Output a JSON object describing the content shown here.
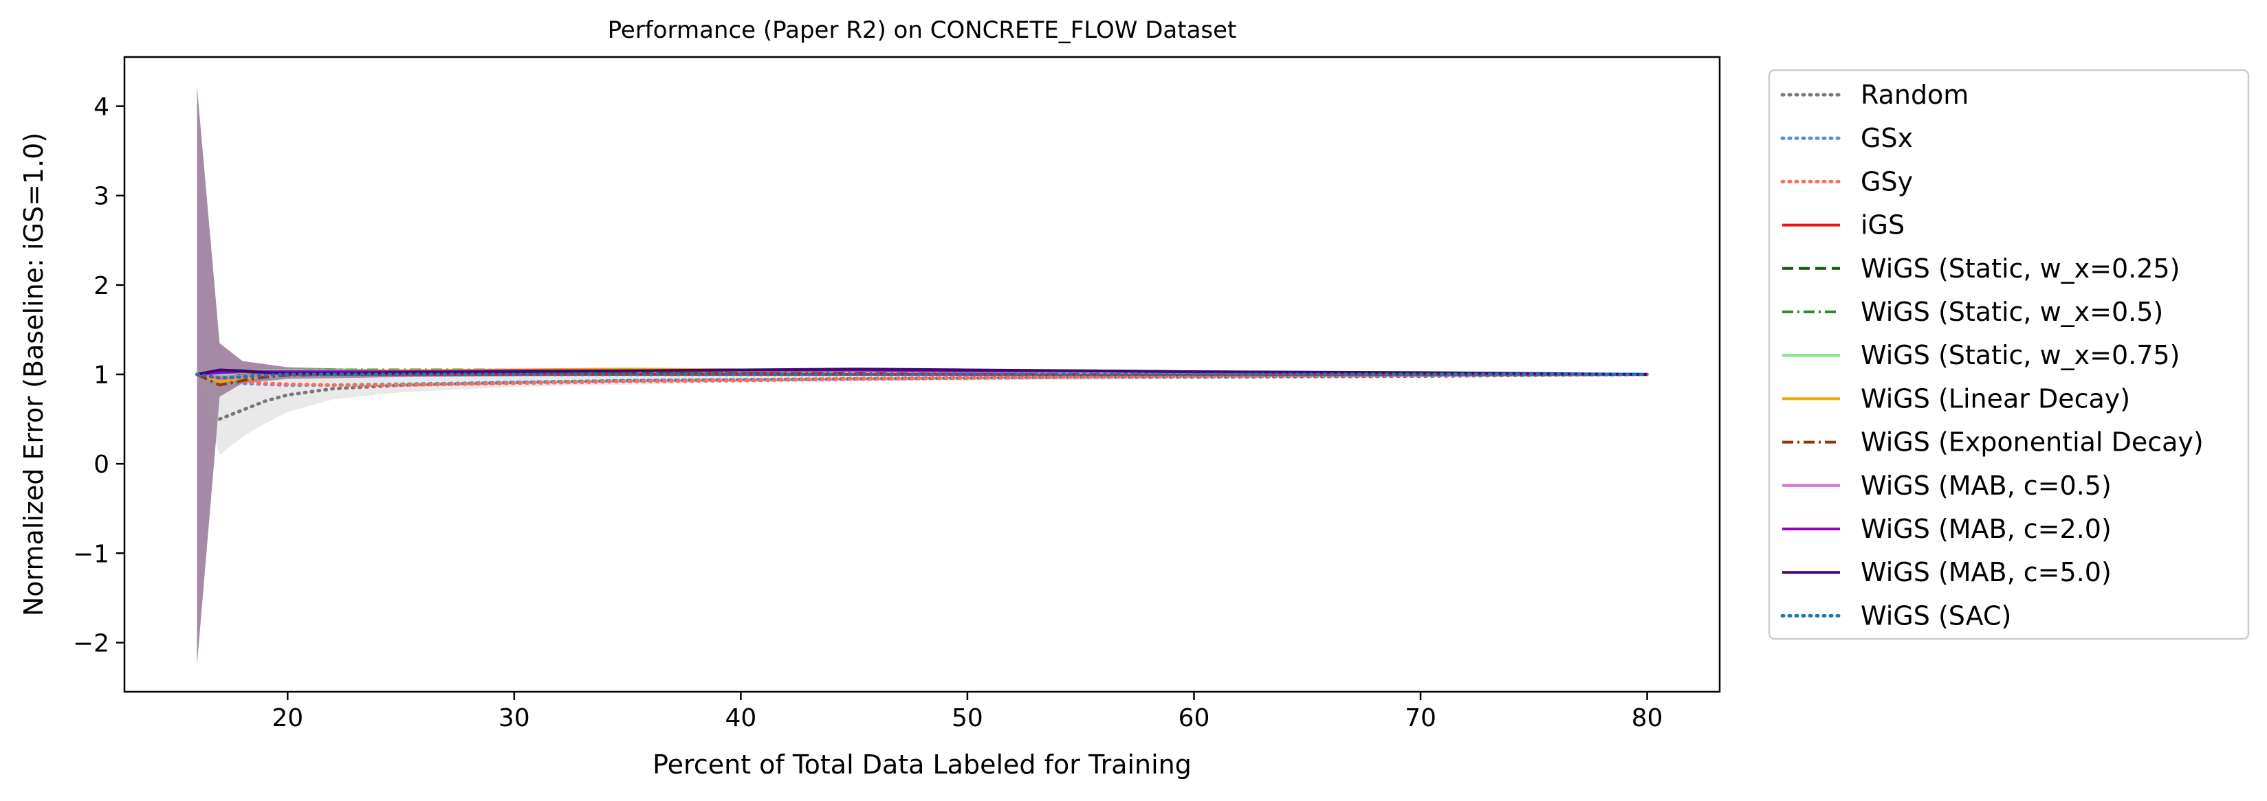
{
  "chart_data": {
    "type": "line",
    "title": "Performance (Paper R2) on CONCRETE_FLOW Dataset",
    "xlabel": "Percent of Total Data Labeled for Training",
    "ylabel": "Normalized Error (Baseline: iGS=1.0)",
    "xlim": [
      12.8,
      83.2
    ],
    "ylim": [
      -2.55,
      4.55
    ],
    "xticks": [
      20,
      30,
      40,
      50,
      60,
      70,
      80
    ],
    "yticks": [
      -2,
      -1,
      0,
      1,
      2,
      3,
      4
    ],
    "ytick_labels": [
      "−2",
      "−1",
      "0",
      "1",
      "2",
      "3",
      "4"
    ],
    "grid": false,
    "legend_position": "outside-right",
    "x": [
      16,
      17,
      18,
      19,
      20,
      22,
      25,
      30,
      35,
      40,
      45,
      50,
      55,
      60,
      70,
      80
    ],
    "bands": [
      {
        "name": "WiGS (MAB, c=5.0)",
        "color": "#6b3a6b",
        "opacity": 0.6,
        "x": [
          16,
          17,
          18,
          20,
          25,
          30,
          40,
          60,
          80
        ],
        "lower": [
          -2.25,
          0.75,
          0.9,
          0.95,
          0.97,
          0.98,
          0.99,
          0.99,
          0.99
        ],
        "upper": [
          4.22,
          1.35,
          1.15,
          1.08,
          1.05,
          1.05,
          1.06,
          1.04,
          1.01
        ]
      },
      {
        "name": "Random",
        "color": "#999999",
        "opacity": 0.22,
        "x": [
          16,
          17,
          18,
          19,
          20,
          22,
          25,
          30,
          40,
          50,
          60,
          80
        ],
        "lower": [
          0.95,
          0.1,
          0.3,
          0.45,
          0.58,
          0.72,
          0.8,
          0.86,
          0.91,
          0.93,
          0.95,
          0.98
        ],
        "upper": [
          1.05,
          1.0,
          1.05,
          1.02,
          1.0,
          0.99,
          0.98,
          0.99,
          0.99,
          0.99,
          0.99,
          1.0
        ]
      }
    ],
    "series": [
      {
        "name": "Random",
        "color": "#777777",
        "dash": "2,8",
        "width": 5,
        "values": [
          null,
          0.5,
          0.6,
          0.7,
          0.77,
          0.84,
          0.88,
          0.91,
          0.93,
          0.94,
          0.95,
          0.96,
          0.97,
          0.97,
          0.98,
          1.0
        ]
      },
      {
        "name": "GSx",
        "color": "#5b8bd8",
        "dash": "2,8",
        "width": 5,
        "values": [
          1.0,
          0.93,
          0.9,
          0.89,
          0.88,
          0.88,
          0.89,
          0.91,
          0.93,
          0.94,
          0.95,
          0.96,
          0.97,
          0.98,
          0.99,
          1.0
        ]
      },
      {
        "name": "GSy",
        "color": "#ff6b5b",
        "dash": "2,8",
        "width": 5,
        "values": [
          1.0,
          0.95,
          0.92,
          0.9,
          0.89,
          0.88,
          0.88,
          0.9,
          0.92,
          0.93,
          0.95,
          0.96,
          0.97,
          0.98,
          0.99,
          1.0
        ]
      },
      {
        "name": "iGS",
        "color": "#ee1111",
        "dash": "",
        "width": 4,
        "values": [
          1.0,
          1.0,
          1.0,
          1.0,
          1.0,
          1.0,
          1.0,
          1.0,
          1.0,
          1.0,
          1.0,
          1.0,
          1.0,
          1.0,
          1.0,
          1.0
        ]
      },
      {
        "name": "WiGS (Static, w_x=0.25)",
        "color": "#0e5e0e",
        "dash": "16,8",
        "width": 4,
        "values": [
          1.0,
          0.97,
          0.99,
          1.01,
          1.02,
          1.02,
          1.02,
          1.03,
          1.03,
          1.03,
          1.03,
          1.03,
          1.02,
          1.02,
          1.01,
          1.0
        ]
      },
      {
        "name": "WiGS (Static, w_x=0.5)",
        "color": "#2a8f2a",
        "dash": "16,6,3,6",
        "width": 4,
        "values": [
          1.0,
          0.98,
          1.01,
          1.03,
          1.04,
          1.05,
          1.05,
          1.05,
          1.05,
          1.04,
          1.04,
          1.03,
          1.03,
          1.02,
          1.01,
          1.0
        ]
      },
      {
        "name": "WiGS (Static, w_x=0.75)",
        "color": "#7ee87e",
        "dash": "",
        "width": 4,
        "values": [
          1.0,
          0.99,
          1.02,
          1.04,
          1.04,
          1.04,
          1.04,
          1.04,
          1.04,
          1.04,
          1.03,
          1.03,
          1.02,
          1.02,
          1.01,
          1.0
        ]
      },
      {
        "name": "WiGS (Linear Decay)",
        "color": "#f5a30a",
        "dash": "",
        "width": 4,
        "values": [
          1.0,
          0.92,
          0.95,
          0.99,
          1.01,
          1.03,
          1.04,
          1.05,
          1.06,
          1.05,
          1.05,
          1.04,
          1.03,
          1.02,
          1.01,
          1.0
        ]
      },
      {
        "name": "WiGS (Exponential Decay)",
        "color": "#8b3a0a",
        "dash": "16,6,3,6",
        "width": 4,
        "values": [
          1.0,
          0.88,
          0.93,
          0.97,
          0.99,
          1.0,
          1.01,
          1.02,
          1.02,
          1.02,
          1.02,
          1.02,
          1.01,
          1.01,
          1.0,
          1.0
        ]
      },
      {
        "name": "WiGS (MAB, c=0.5)",
        "color": "#da70d6",
        "dash": "",
        "width": 4,
        "values": [
          1.0,
          0.97,
          0.98,
          1.0,
          1.01,
          1.02,
          1.03,
          1.03,
          1.04,
          1.04,
          1.04,
          1.03,
          1.03,
          1.02,
          1.01,
          1.0
        ]
      },
      {
        "name": "WiGS (MAB, c=2.0)",
        "color": "#9400d3",
        "dash": "",
        "width": 4,
        "values": [
          1.0,
          1.02,
          1.03,
          1.03,
          1.03,
          1.03,
          1.03,
          1.04,
          1.04,
          1.05,
          1.05,
          1.04,
          1.04,
          1.03,
          1.01,
          1.0
        ]
      },
      {
        "name": "WiGS (MAB, c=5.0)",
        "color": "#3b0a6b",
        "dash": "",
        "width": 4,
        "values": [
          1.0,
          1.05,
          1.04,
          1.02,
          1.01,
          1.01,
          1.02,
          1.03,
          1.04,
          1.05,
          1.06,
          1.05,
          1.04,
          1.03,
          1.02,
          1.0
        ]
      },
      {
        "name": "WiGS (SAC)",
        "color": "#1f77b4",
        "dash": "2,8",
        "width": 5,
        "values": [
          1.0,
          0.96,
          0.97,
          0.99,
          1.0,
          1.0,
          1.0,
          1.0,
          1.0,
          1.0,
          1.0,
          1.0,
          1.0,
          1.0,
          1.0,
          1.0
        ]
      }
    ]
  }
}
